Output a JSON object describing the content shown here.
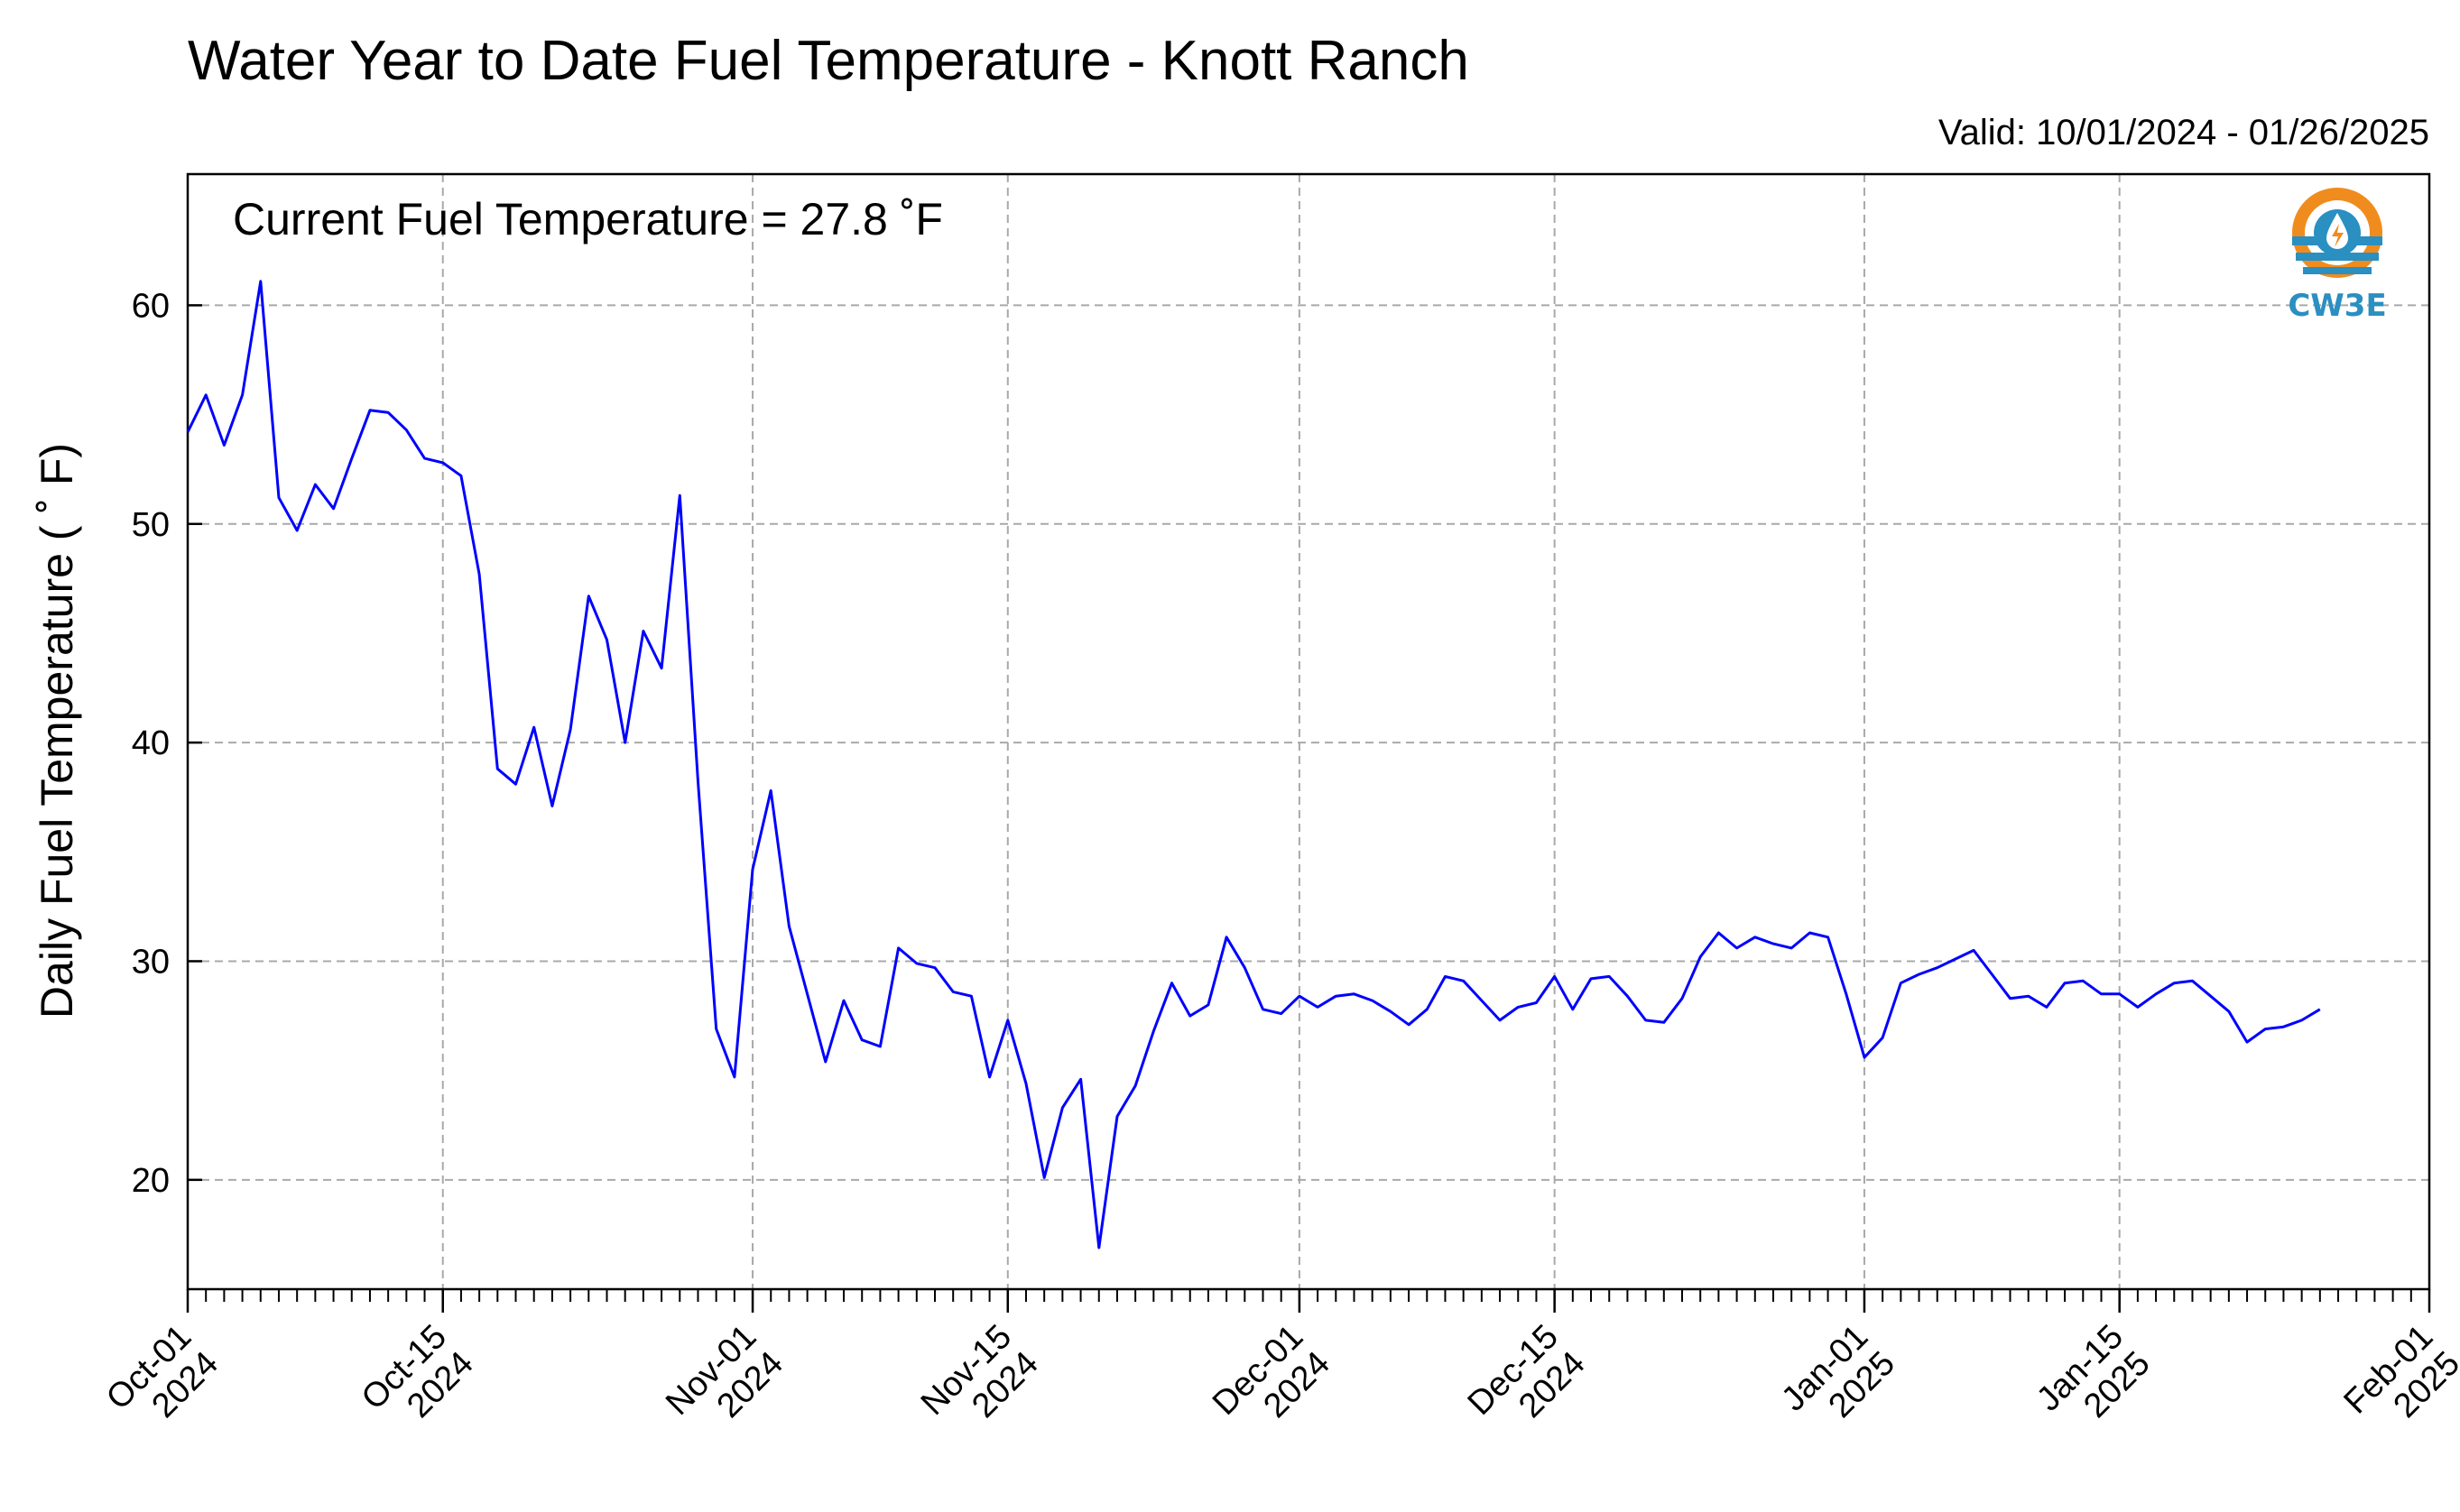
{
  "chart_data": {
    "type": "line",
    "title": "Water Year to Date Fuel Temperature - Knott Ranch",
    "subtitle": "Valid: 10/01/2024 - 01/26/2025",
    "annotation": "Current Fuel Temperature = 27.8  ˚F",
    "ylabel": "Daily Fuel Temperature ( ˚ F)",
    "xlabel": "",
    "ylim": [
      15,
      66
    ],
    "xlim": [
      "2024-10-01",
      "2025-02-01"
    ],
    "yticks": [
      20,
      30,
      40,
      50,
      60
    ],
    "xticks": [
      {
        "date": "2024-10-01",
        "line1": "Oct-01",
        "line2": "2024"
      },
      {
        "date": "2024-10-15",
        "line1": "Oct-15",
        "line2": "2024"
      },
      {
        "date": "2024-11-01",
        "line1": "Nov-01",
        "line2": "2024"
      },
      {
        "date": "2024-11-15",
        "line1": "Nov-15",
        "line2": "2024"
      },
      {
        "date": "2024-12-01",
        "line1": "Dec-01",
        "line2": "2024"
      },
      {
        "date": "2024-12-15",
        "line1": "Dec-15",
        "line2": "2024"
      },
      {
        "date": "2025-01-01",
        "line1": "Jan-01",
        "line2": "2025"
      },
      {
        "date": "2025-01-15",
        "line1": "Jan-15",
        "line2": "2025"
      },
      {
        "date": "2025-02-01",
        "line1": "Feb-01",
        "line2": "2025"
      }
    ],
    "grid": true,
    "line_color": "#0000ff",
    "series": [
      {
        "start_date": "2024-10-01",
        "values": [
          54.2,
          55.9,
          53.6,
          55.9,
          61.1,
          51.2,
          49.7,
          51.8,
          50.7,
          53.0,
          55.2,
          55.1,
          54.3,
          53.0,
          52.8,
          52.2,
          47.7,
          38.8,
          38.1,
          40.7,
          37.1,
          40.6,
          46.7,
          44.7,
          40.0,
          45.1,
          43.4,
          51.3,
          38.2,
          26.9,
          24.7,
          34.2,
          37.8,
          31.6,
          28.5,
          25.4,
          28.2,
          26.4,
          26.1,
          30.6,
          29.9,
          29.7,
          28.6,
          28.4,
          24.7,
          27.3,
          24.4,
          20.1,
          23.3,
          24.6,
          16.9,
          22.9,
          24.3,
          26.8,
          29.0,
          27.5,
          28.0,
          31.1,
          29.7,
          27.8,
          27.6,
          28.4,
          27.9,
          28.4,
          28.5,
          28.2,
          27.7,
          27.1,
          27.8,
          29.3,
          29.1,
          28.2,
          27.3,
          27.9,
          28.1,
          29.3,
          27.8,
          29.2,
          29.3,
          28.4,
          27.3,
          27.2,
          28.3,
          30.2,
          31.3,
          30.6,
          31.1,
          30.8,
          30.6,
          31.3,
          31.1,
          28.5,
          25.6,
          26.5,
          29.0,
          29.4,
          29.7,
          30.1,
          30.5,
          29.4,
          28.3,
          28.4,
          27.9,
          29.0,
          29.1,
          28.5,
          28.5,
          27.9,
          28.5,
          29.0,
          29.1,
          28.4,
          27.7,
          26.3,
          26.9,
          27.0,
          27.3,
          27.8
        ]
      }
    ]
  },
  "logo": {
    "text": "CW3E",
    "ring_color": "#f08c1e",
    "wave_color": "#2a8fc1"
  }
}
